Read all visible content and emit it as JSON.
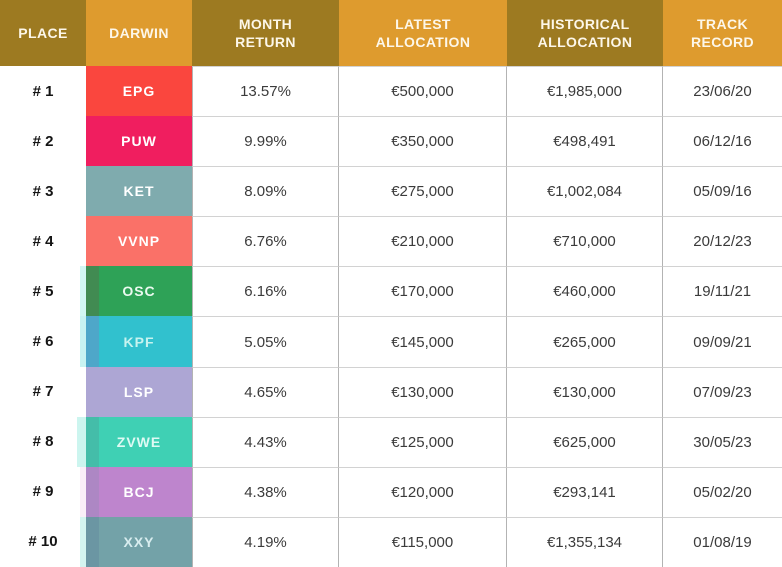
{
  "colors": {
    "header_dark": "#9d7a21",
    "header_light": "#de9b2e",
    "header_text": "#fdf7e9",
    "divider_vertical": "#b3b3b3",
    "divider_horizontal": "#d2d2d2"
  },
  "header": {
    "columns": [
      {
        "label": "PLACE",
        "tone": "dark"
      },
      {
        "label": "DARWIN",
        "tone": "light"
      },
      {
        "label": "MONTH\nRETURN",
        "tone": "dark"
      },
      {
        "label": "LATEST\nALLOCATION",
        "tone": "light"
      },
      {
        "label": "HISTORICAL\nALLOCATION",
        "tone": "dark"
      },
      {
        "label": "TRACK\nRECORD",
        "tone": "light"
      }
    ]
  },
  "rows": [
    {
      "place": "# 1",
      "darwin": "EPG",
      "badge_color": "#fa463e",
      "label_color": "#ffffff",
      "band_color": null,
      "strip_color": null,
      "strip_width": 0,
      "month_return": "13.57%",
      "latest_allocation": "€500,000",
      "historical_allocation": "€1,985,000",
      "track_record": "23/06/20"
    },
    {
      "place": "# 2",
      "darwin": "PUW",
      "badge_color": "#f01e5f",
      "label_color": "#ffffff",
      "band_color": null,
      "strip_color": null,
      "strip_width": 0,
      "month_return": "9.99%",
      "latest_allocation": "€350,000",
      "historical_allocation": "€498,491",
      "track_record": "06/12/16"
    },
    {
      "place": "# 3",
      "darwin": "KET",
      "badge_color": "#7fabae",
      "label_color": "#ffffff",
      "band_color": null,
      "strip_color": null,
      "strip_width": 0,
      "month_return": "8.09%",
      "latest_allocation": "€275,000",
      "historical_allocation": "€1,002,084",
      "track_record": "05/09/16"
    },
    {
      "place": "# 4",
      "darwin": "VVNP",
      "badge_color": "#fa7168",
      "label_color": "#ffffff",
      "band_color": null,
      "strip_color": null,
      "strip_width": 0,
      "month_return": "6.76%",
      "latest_allocation": "€210,000",
      "historical_allocation": "€710,000",
      "track_record": "20/12/23"
    },
    {
      "place": "# 5",
      "darwin": "OSC",
      "badge_color": "#2ea257",
      "label_color": "#eafaef",
      "band_color": "#418b52",
      "strip_color": "#d2f7f3",
      "strip_width": 6,
      "month_return": "6.16%",
      "latest_allocation": "€170,000",
      "historical_allocation": "€460,000",
      "track_record": "19/11/21"
    },
    {
      "place": "# 6",
      "darwin": "KPF",
      "badge_color": "#31c1ce",
      "label_color": "#c6f3ef",
      "band_color": "#4ea7c9",
      "strip_color": "#c8f3f2",
      "strip_width": 6,
      "month_return": "5.05%",
      "latest_allocation": "€145,000",
      "historical_allocation": "€265,000",
      "track_record": "09/09/21"
    },
    {
      "place": "# 7",
      "darwin": "LSP",
      "badge_color": "#ada6d4",
      "label_color": "#ffffff",
      "band_color": null,
      "strip_color": null,
      "strip_width": 0,
      "month_return": "4.65%",
      "latest_allocation": "€130,000",
      "historical_allocation": "€130,000",
      "track_record": "07/09/23"
    },
    {
      "place": "# 8",
      "darwin": "ZVWE",
      "badge_color": "#3fd0b4",
      "label_color": "#dffaf4",
      "band_color": "#44bda9",
      "strip_color": "#ccf5ef",
      "strip_width": 9,
      "month_return": "4.43%",
      "latest_allocation": "€125,000",
      "historical_allocation": "€625,000",
      "track_record": "30/05/23"
    },
    {
      "place": "# 9",
      "darwin": "BCJ",
      "badge_color": "#be85cd",
      "label_color": "#ffffff",
      "band_color": "#ad87c4",
      "strip_color": "#faeef8",
      "strip_width": 6,
      "month_return": "4.38%",
      "latest_allocation": "€120,000",
      "historical_allocation": "€293,141",
      "track_record": "05/02/20"
    },
    {
      "place": "# 10",
      "darwin": "XXY",
      "badge_color": "#73a2a8",
      "label_color": "#d8edef",
      "band_color": "#6b96a3",
      "strip_color": "#d4f4f0",
      "strip_width": 6,
      "month_return": "4.19%",
      "latest_allocation": "€115,000",
      "historical_allocation": "€1,355,134",
      "track_record": "01/08/19"
    }
  ]
}
